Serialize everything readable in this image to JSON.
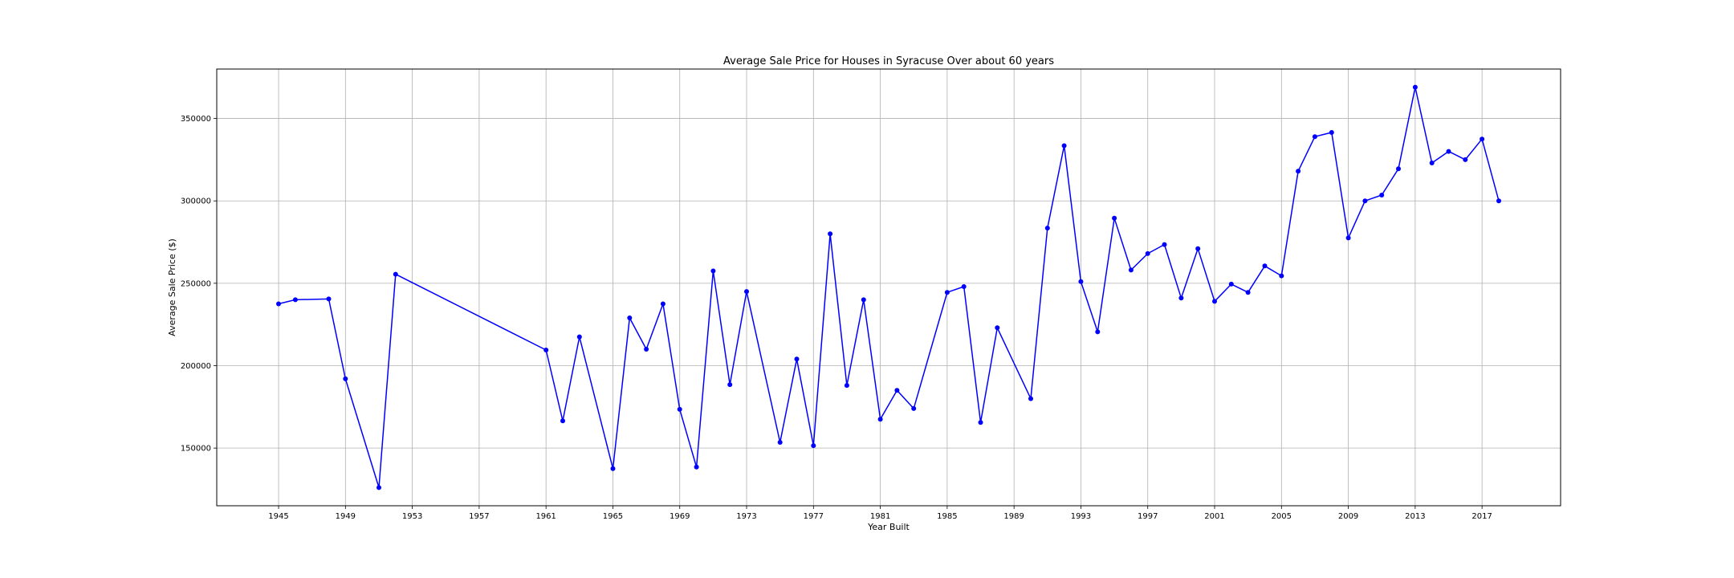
{
  "chart_data": {
    "type": "line",
    "title": "Average Sale Price for Houses in Syracuse Over about 60 years",
    "xlabel": "Year Built",
    "ylabel": "Average Sale Price ($)",
    "xlim": [
      1941.3,
      2021.7
    ],
    "ylim": [
      115000,
      380000
    ],
    "x_ticks": [
      1945,
      1949,
      1953,
      1957,
      1961,
      1965,
      1969,
      1973,
      1977,
      1981,
      1985,
      1989,
      1993,
      1997,
      2001,
      2005,
      2009,
      2013,
      2017
    ],
    "y_ticks": [
      150000,
      200000,
      250000,
      300000,
      350000
    ],
    "grid": true,
    "series_color": "#0000ff",
    "series": [
      {
        "x": [
          1945,
          1946,
          1948,
          1949,
          1951,
          1952,
          1961,
          1962,
          1963,
          1965,
          1966,
          1967,
          1968,
          1969,
          1970,
          1971,
          1972,
          1973,
          1975,
          1976,
          1977,
          1978,
          1979,
          1980,
          1981,
          1982,
          1983,
          1985,
          1986,
          1987,
          1988,
          1990,
          1991,
          1992,
          1993,
          1994,
          1995,
          1996,
          1997,
          1998,
          1999,
          2000,
          2001,
          2002,
          2003,
          2004,
          2005,
          2006,
          2007,
          2008,
          2009,
          2010,
          2011,
          2012,
          2013,
          2014,
          2015,
          2016,
          2017,
          2018
        ],
        "y": [
          237500,
          240000,
          240500,
          192000,
          126000,
          255500,
          209500,
          166500,
          217500,
          137500,
          229000,
          210000,
          237500,
          173500,
          138500,
          257500,
          188500,
          245000,
          153500,
          204000,
          151500,
          280000,
          188000,
          240000,
          167500,
          185000,
          174000,
          244500,
          248000,
          165500,
          223000,
          180000,
          283500,
          333500,
          251000,
          220500,
          289500,
          258000,
          268000,
          273500,
          241000,
          271000,
          239000,
          249500,
          244500,
          260500,
          254500,
          318000,
          339000,
          341500,
          277500,
          300000,
          303500,
          319500,
          369000,
          323000,
          330000,
          325000,
          337500,
          300000
        ]
      }
    ]
  }
}
